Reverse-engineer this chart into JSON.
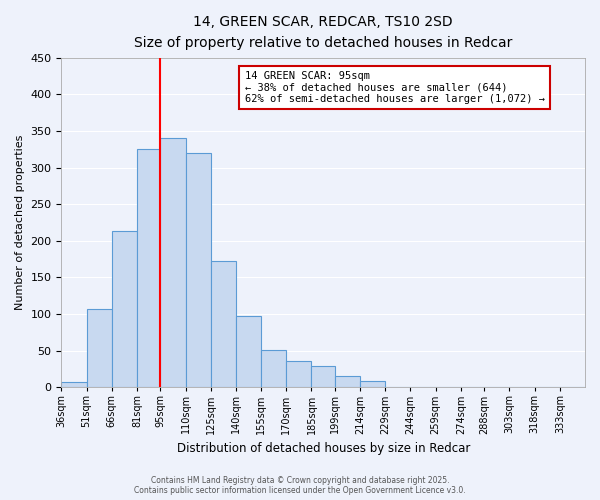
{
  "title": "14, GREEN SCAR, REDCAR, TS10 2SD",
  "subtitle": "Size of property relative to detached houses in Redcar",
  "xlabel": "Distribution of detached houses by size in Redcar",
  "ylabel": "Number of detached properties",
  "bar_color": "#c8d9f0",
  "bar_edge_color": "#5b9bd5",
  "background_color": "#eef2fb",
  "grid_color": "#ffffff",
  "categories": [
    "36sqm",
    "51sqm",
    "66sqm",
    "81sqm",
    "95sqm",
    "110sqm",
    "125sqm",
    "140sqm",
    "155sqm",
    "170sqm",
    "185sqm",
    "199sqm",
    "214sqm",
    "229sqm",
    "244sqm",
    "259sqm",
    "274sqm",
    "288sqm",
    "303sqm",
    "318sqm",
    "333sqm"
  ],
  "values": [
    7,
    107,
    213,
    325,
    340,
    320,
    172,
    98,
    51,
    36,
    29,
    16,
    9,
    0,
    0,
    0,
    0,
    0,
    0,
    0,
    0
  ],
  "bin_edges": [
    36,
    51,
    66,
    81,
    95,
    110,
    125,
    140,
    155,
    170,
    185,
    199,
    214,
    229,
    244,
    259,
    274,
    288,
    303,
    318,
    333,
    348
  ],
  "ylim": [
    0,
    450
  ],
  "yticks": [
    0,
    50,
    100,
    150,
    200,
    250,
    300,
    350,
    400,
    450
  ],
  "red_line_x": 95,
  "annotation_line1": "14 GREEN SCAR: 95sqm",
  "annotation_line2": "← 38% of detached houses are smaller (644)",
  "annotation_line3": "62% of semi-detached houses are larger (1,072) →",
  "annotation_box_color": "#ffffff",
  "annotation_box_edge": "#cc0000",
  "footer_line1": "Contains HM Land Registry data © Crown copyright and database right 2025.",
  "footer_line2": "Contains public sector information licensed under the Open Government Licence v3.0."
}
